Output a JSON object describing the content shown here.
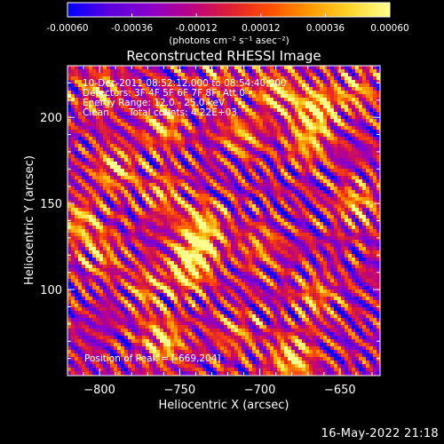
{
  "chart_data": {
    "type": "heatmap",
    "title": "Reconstructed RHESSI Image",
    "xlabel": "Heliocentric X (arcsec)",
    "ylabel": "Heliocentric Y (arcsec)",
    "xlim": [
      -820,
      -625
    ],
    "ylim": [
      50,
      230
    ],
    "xticks": [
      -800,
      -750,
      -700,
      -650
    ],
    "yticks": [
      100,
      150,
      200
    ],
    "annotations": [
      "10-Dec-2011 08:52:12.000 to 08:54:40.000",
      "Detectors: 3F 4F 5F 6F 7F 8F, Att 0",
      "Energy Range: 12.0 - 25.0 keV",
      "Clean",
      "Total counts: 4.22E+03",
      "Position of Peak = [-669,204]"
    ],
    "peak": [
      -669,
      204
    ],
    "colorbar": {
      "range": [
        -0.0006,
        0.0006
      ],
      "ticks": [
        "-0.00060",
        "-0.00036",
        "-0.00012",
        "0.00012",
        "0.00036",
        "0.00060"
      ],
      "label": "(photons cm⁻² s⁻¹ asec⁻²)",
      "colormap": [
        "#0000ff",
        "#5a00e0",
        "#8800cc",
        "#b8008a",
        "#dd1d35",
        "#ff4d00",
        "#ff9800",
        "#ffd62a",
        "#ffff90"
      ]
    },
    "hotspots": [
      {
        "x": -665,
        "y": 205,
        "amp": 1.0
      },
      {
        "x": -690,
        "y": 215,
        "amp": 0.75
      },
      {
        "x": -640,
        "y": 215,
        "amp": 0.55
      },
      {
        "x": -670,
        "y": 185,
        "amp": 0.6
      },
      {
        "x": -738,
        "y": 125,
        "amp": 0.85
      },
      {
        "x": -745,
        "y": 110,
        "amp": 0.75
      },
      {
        "x": -735,
        "y": 140,
        "amp": 0.55
      },
      {
        "x": -760,
        "y": 70,
        "amp": 0.85
      },
      {
        "x": -770,
        "y": 100,
        "amp": 0.5
      },
      {
        "x": -790,
        "y": 170,
        "amp": 0.7
      },
      {
        "x": -800,
        "y": 120,
        "amp": 0.55
      },
      {
        "x": -812,
        "y": 140,
        "amp": 0.65
      },
      {
        "x": -760,
        "y": 195,
        "amp": 0.65
      },
      {
        "x": -760,
        "y": 155,
        "amp": 0.55
      },
      {
        "x": -712,
        "y": 190,
        "amp": 0.55
      },
      {
        "x": -700,
        "y": 125,
        "amp": 0.45
      },
      {
        "x": -680,
        "y": 60,
        "amp": 0.9
      },
      {
        "x": -665,
        "y": 95,
        "amp": 0.55
      },
      {
        "x": -640,
        "y": 150,
        "amp": 0.65
      },
      {
        "x": -800,
        "y": 215,
        "amp": 0.55
      },
      {
        "x": -725,
        "y": 225,
        "amp": 0.45
      },
      {
        "x": -715,
        "y": 75,
        "amp": 0.45
      }
    ]
  },
  "footer": {
    "timestamp": "16-May-2022 21:18"
  }
}
